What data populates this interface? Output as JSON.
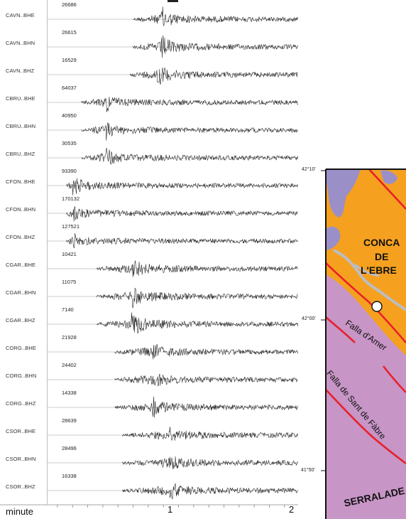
{
  "traces": [
    {
      "station": "CAVN..BHE",
      "amplitude": "26686",
      "onset": 1.0,
      "peak": 1.18,
      "level": 1.0,
      "coda": 0.7,
      "skew": 0.0
    },
    {
      "station": "CAVN..BHN",
      "amplitude": "26615",
      "onset": 1.0,
      "peak": 1.18,
      "level": 1.0,
      "coda": 0.7,
      "skew": 0.0
    },
    {
      "station": "CAVN..BHZ",
      "amplitude": "16529",
      "onset": 0.98,
      "peak": 1.15,
      "level": 0.95,
      "coda": 0.75,
      "skew": 0.3
    },
    {
      "station": "CBRU..BHE",
      "amplitude": "64037",
      "onset": 0.66,
      "peak": 0.82,
      "level": 0.6,
      "coda": 0.45,
      "skew": 0.2
    },
    {
      "station": "CBRU..BHN",
      "amplitude": "40950",
      "onset": 0.66,
      "peak": 0.82,
      "level": 0.6,
      "coda": 0.45,
      "skew": 0.0
    },
    {
      "station": "CBRU..BHZ",
      "amplitude": "30535",
      "onset": 0.66,
      "peak": 0.82,
      "level": 0.75,
      "coda": 0.45,
      "skew": 0.25
    },
    {
      "station": "CFON..BHE",
      "amplitude": "93390",
      "onset": 0.56,
      "peak": 0.6,
      "level": 0.7,
      "coda": 0.55,
      "skew": 0.1
    },
    {
      "station": "CFON..BHN",
      "amplitude": "170132",
      "onset": 0.56,
      "peak": 0.6,
      "level": 0.45,
      "coda": 0.4,
      "skew": 0.0
    },
    {
      "station": "CFON..BHZ",
      "amplitude": "127521",
      "onset": 0.56,
      "peak": 0.6,
      "level": 0.55,
      "coda": 0.35,
      "skew": 0.3
    },
    {
      "station": "CGAR..BHE",
      "amplitude": "10421",
      "onset": 0.76,
      "peak": 0.99,
      "level": 0.9,
      "coda": 0.8,
      "skew": 0.1
    },
    {
      "station": "CGAR..BHN",
      "amplitude": "11075",
      "onset": 0.76,
      "peak": 0.99,
      "level": 0.8,
      "coda": 0.85,
      "skew": 0.0
    },
    {
      "station": "CGAR..BHZ",
      "amplitude": "7140",
      "onset": 0.76,
      "peak": 0.99,
      "level": 1.0,
      "coda": 0.95,
      "skew": 0.2
    },
    {
      "station": "CORG..BHE",
      "amplitude": "21928",
      "onset": 0.88,
      "peak": 1.13,
      "level": 0.55,
      "coda": 0.6,
      "skew": 0.2
    },
    {
      "station": "CORG..BHN",
      "amplitude": "24402",
      "onset": 0.88,
      "peak": 1.13,
      "level": 0.5,
      "coda": 0.55,
      "skew": 0.0
    },
    {
      "station": "CORG..BHZ",
      "amplitude": "14338",
      "onset": 0.88,
      "peak": 1.13,
      "level": 0.65,
      "coda": 0.65,
      "skew": 0.25
    },
    {
      "station": "CSOR..BHE",
      "amplitude": "28639",
      "onset": 0.93,
      "peak": 1.24,
      "level": 0.55,
      "coda": 0.55,
      "skew": 0.2
    },
    {
      "station": "CSOR..BHN",
      "amplitude": "28496",
      "onset": 0.93,
      "peak": 1.24,
      "level": 0.5,
      "coda": 0.55,
      "skew": 0.0
    },
    {
      "station": "CSOR..BHZ",
      "amplitude": "16338",
      "onset": 0.93,
      "peak": 1.24,
      "level": 0.6,
      "coda": 0.6,
      "skew": 0.3
    }
  ],
  "axis": {
    "label": "minute",
    "ticks": [
      "1",
      "2"
    ],
    "tick_values": [
      1,
      2
    ],
    "range_min": [
      0.43,
      2.09
    ]
  },
  "map": {
    "lat_labels": [
      "42°10'",
      "42°00'",
      "41°50'"
    ],
    "region_label_lines": [
      "CONCA",
      "DE",
      "L'EBRE"
    ],
    "range_label": "SERRALADE",
    "faults": [
      "Falla d'Amer",
      "Falla de Sant de Fàbre"
    ],
    "colors": {
      "basin": "#f5a11f",
      "range": "#c795c6",
      "lake": "#9b8fc8",
      "fault": "#e8202a",
      "water_channel": "#bcbcc4"
    }
  },
  "colors": {
    "trace": "#1a1a1a",
    "baseline": "#9a9a9a",
    "separator": "#bdbdbd"
  }
}
